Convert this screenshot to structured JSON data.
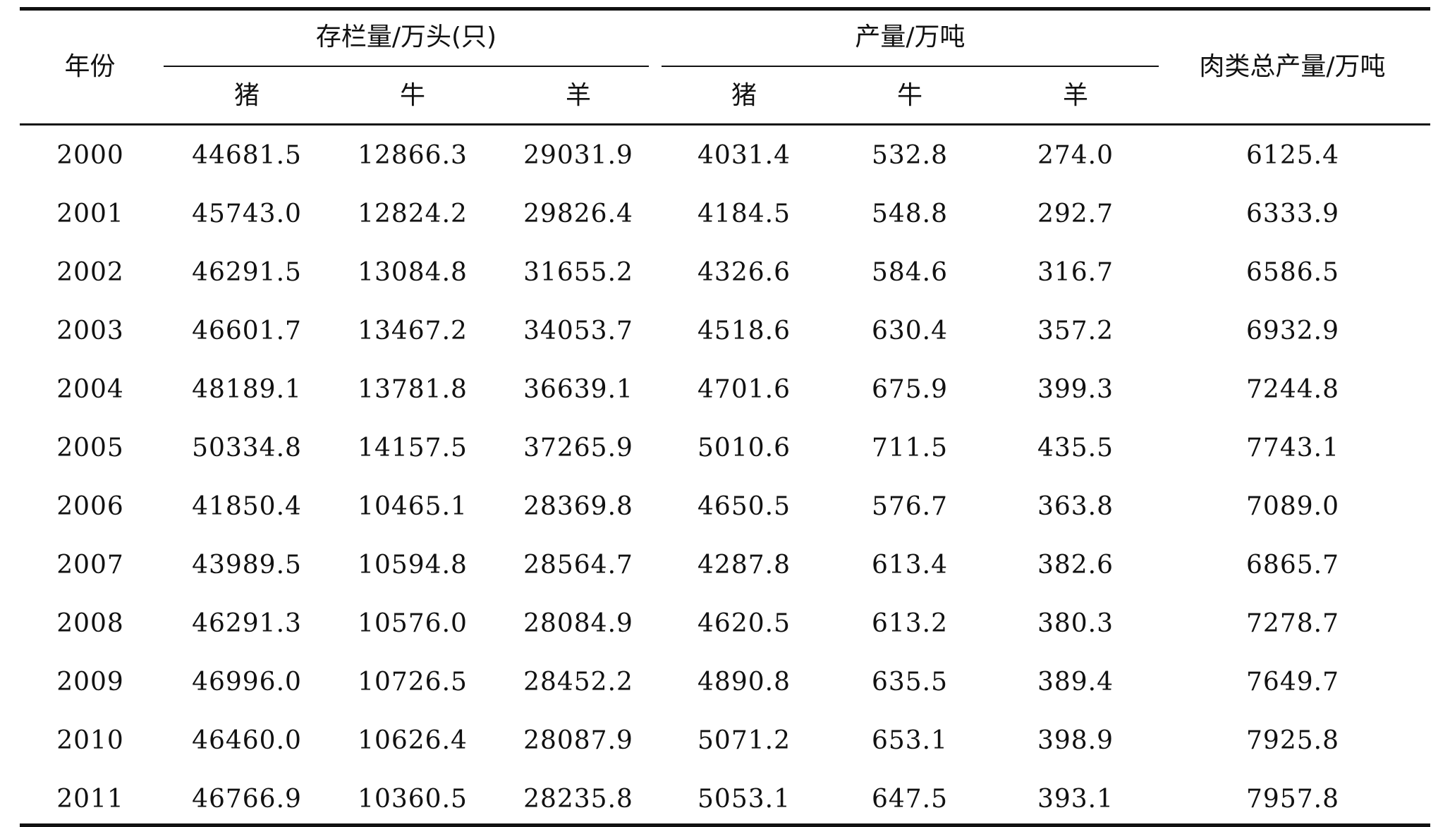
{
  "table": {
    "header": {
      "year": "年份",
      "stock_group": "存栏量/万头(只)",
      "output_group": "产量/万吨",
      "meat_total": "肉类总产量/万吨",
      "stock_pig": "猪",
      "stock_cattle": "牛",
      "stock_sheep": "羊",
      "output_pig": "猪",
      "output_cattle": "牛",
      "output_sheep": "羊"
    },
    "rows": [
      [
        "2000",
        "44681.5",
        "12866.3",
        "29031.9",
        "4031.4",
        "532.8",
        "274.0",
        "6125.4"
      ],
      [
        "2001",
        "45743.0",
        "12824.2",
        "29826.4",
        "4184.5",
        "548.8",
        "292.7",
        "6333.9"
      ],
      [
        "2002",
        "46291.5",
        "13084.8",
        "31655.2",
        "4326.6",
        "584.6",
        "316.7",
        "6586.5"
      ],
      [
        "2003",
        "46601.7",
        "13467.2",
        "34053.7",
        "4518.6",
        "630.4",
        "357.2",
        "6932.9"
      ],
      [
        "2004",
        "48189.1",
        "13781.8",
        "36639.1",
        "4701.6",
        "675.9",
        "399.3",
        "7244.8"
      ],
      [
        "2005",
        "50334.8",
        "14157.5",
        "37265.9",
        "5010.6",
        "711.5",
        "435.5",
        "7743.1"
      ],
      [
        "2006",
        "41850.4",
        "10465.1",
        "28369.8",
        "4650.5",
        "576.7",
        "363.8",
        "7089.0"
      ],
      [
        "2007",
        "43989.5",
        "10594.8",
        "28564.7",
        "4287.8",
        "613.4",
        "382.6",
        "6865.7"
      ],
      [
        "2008",
        "46291.3",
        "10576.0",
        "28084.9",
        "4620.5",
        "613.2",
        "380.3",
        "7278.7"
      ],
      [
        "2009",
        "46996.0",
        "10726.5",
        "28452.2",
        "4890.8",
        "635.5",
        "389.4",
        "7649.7"
      ],
      [
        "2010",
        "46460.0",
        "10626.4",
        "28087.9",
        "5071.2",
        "653.1",
        "398.9",
        "7925.8"
      ],
      [
        "2011",
        "46766.9",
        "10360.5",
        "28235.8",
        "5053.1",
        "647.5",
        "393.1",
        "7957.8"
      ]
    ]
  }
}
